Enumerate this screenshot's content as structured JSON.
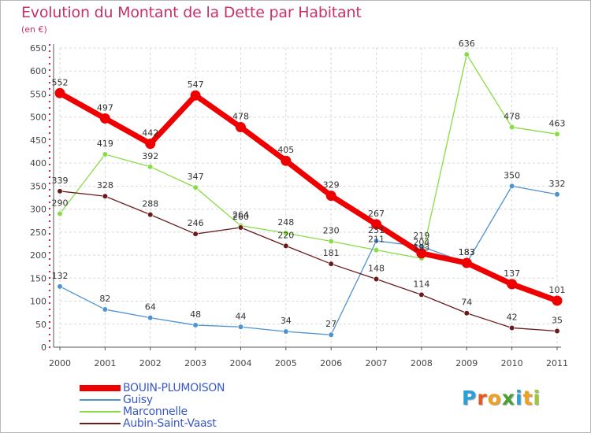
{
  "title": "Evolution du Montant de la Dette par Habitant",
  "subtitle": "(en €)",
  "logo": {
    "letters": [
      "P",
      "r",
      "o",
      "x",
      "i",
      "t",
      "i"
    ],
    "colors": [
      "#2aa0d8",
      "#e8581c",
      "#f0a020",
      "#48a030",
      "#2aa0d8",
      "#f0a020",
      "#9cc83c"
    ]
  },
  "chart_data": {
    "type": "line",
    "x": [
      "2000",
      "2001",
      "2002",
      "2003",
      "2004",
      "2005",
      "2006",
      "2007",
      "2008",
      "2009",
      "2010",
      "2011"
    ],
    "ylim": [
      0,
      650
    ],
    "yticks": [
      0,
      50,
      100,
      150,
      200,
      250,
      300,
      350,
      400,
      450,
      500,
      550,
      600,
      650
    ],
    "grid": true,
    "legend_position": "bottom-left",
    "series": [
      {
        "name": "BOUIN-PLUMOISON",
        "color": "#ee0000",
        "values": [
          552,
          497,
          442,
          547,
          478,
          405,
          329,
          267,
          204,
          183,
          137,
          101
        ]
      },
      {
        "name": "Guisy",
        "color": "#4f92d0",
        "values": [
          132,
          82,
          64,
          48,
          44,
          34,
          27,
          231,
          219,
          183,
          350,
          332
        ]
      },
      {
        "name": "Marconnelle",
        "color": "#88dd44",
        "values": [
          290,
          419,
          392,
          347,
          264,
          248,
          230,
          211,
          193,
          636,
          478,
          463
        ]
      },
      {
        "name": "Aubin-Saint-Vaast",
        "color": "#6b1a1a",
        "values": [
          339,
          328,
          288,
          246,
          260,
          220,
          181,
          148,
          114,
          74,
          42,
          35
        ]
      }
    ]
  }
}
